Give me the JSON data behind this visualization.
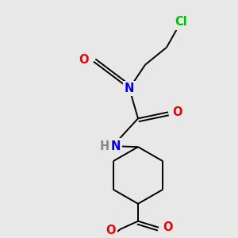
{
  "bg_color": "#e8e8e8",
  "atom_colors": {
    "N": "#0000ee",
    "O": "#ee0000",
    "Cl": "#00bb00",
    "H": "#888888"
  },
  "bond_color": "#000000",
  "bond_width": 1.4,
  "font_size": 10.5
}
